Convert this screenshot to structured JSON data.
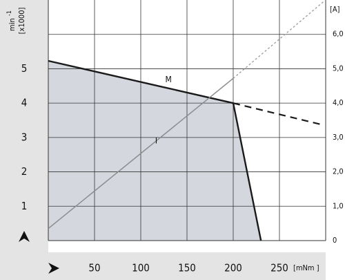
{
  "chart_data": {
    "type": "line",
    "ylabel": "min",
    "ylabel_exp": "-1",
    "ylabel_unit": "[x1000]",
    "xlabel": "[mNm ]",
    "y2label": "[A]",
    "xlim": [
      0,
      300
    ],
    "ylim": [
      0,
      7
    ],
    "y2lim": [
      0,
      7
    ],
    "xticks": [
      50,
      100,
      150,
      200,
      250
    ],
    "yticks": [
      1,
      2,
      3,
      4,
      5
    ],
    "y2ticks": [
      0,
      {
        "value": 1,
        "label": "1,0"
      },
      {
        "value": 2,
        "label": "2,0"
      },
      {
        "value": 3,
        "label": "3,0"
      },
      {
        "value": 4,
        "label": "4,0"
      },
      {
        "value": 5,
        "label": "5,0"
      },
      {
        "value": 6,
        "label": "6,0"
      }
    ],
    "grid": true,
    "series": [
      {
        "name": "M",
        "color": "#1a1a1a",
        "fill": "#d5d7df",
        "x": [
          0,
          200,
          230
        ],
        "values": [
          5.23,
          4.0,
          0
        ]
      },
      {
        "name": "I",
        "color": "#8c8c8c",
        "axis": "y2",
        "x": [
          0,
          200
        ],
        "values": [
          0.35,
          4.72
        ]
      }
    ],
    "extensions": [
      {
        "color": "#1a1a1a",
        "dash": "dashed",
        "x": [
          200,
          298
        ],
        "values": [
          4.0,
          3.36
        ]
      },
      {
        "color": "#9a9a9a",
        "dash": "dotted",
        "axis": "y2",
        "x": [
          200,
          298
        ],
        "values": [
          4.72,
          6.96
        ]
      }
    ]
  }
}
